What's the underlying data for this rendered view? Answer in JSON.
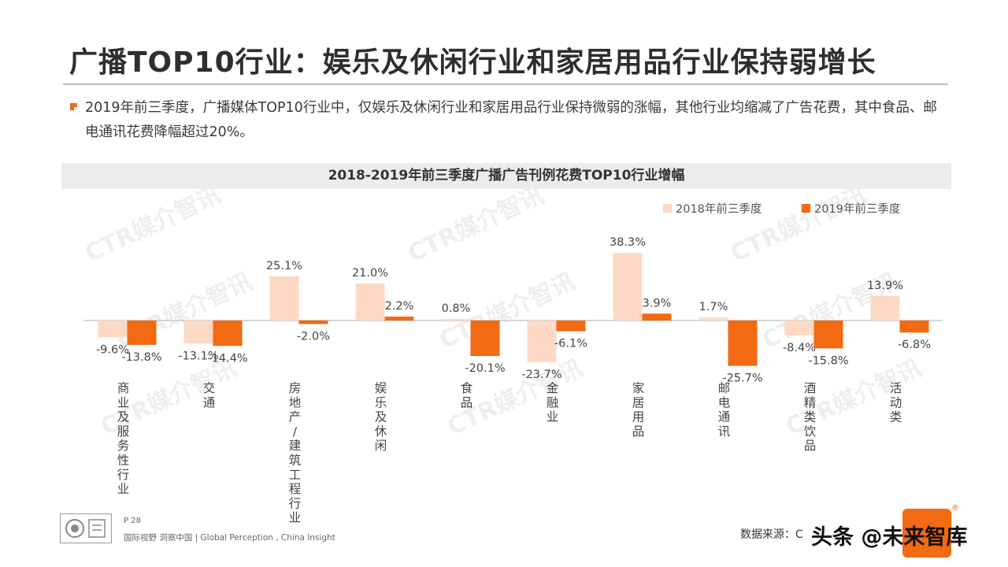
{
  "slide": {
    "title": "广播TOP10行业：娱乐及休闲行业和家居用品行业保持弱增长",
    "bullet_text": "2019年前三季度，广播媒体TOP10行业中，仅娱乐及休闲行业和家居用品行业保持微弱的涨幅，其他行业均缩减了广告花费，其中食品、邮电通讯花费降幅超过20%。"
  },
  "footer": {
    "page": "P 28",
    "slogan": "国际视野  洞察中国 |  Global Perception , China Insight",
    "source": "数据来源：C",
    "watermark_text": "头条 @未来智库"
  },
  "background_watermark": "CTR媒介智讯",
  "colors": {
    "accent": "#f26a11",
    "series_2018": "#fcd9c4",
    "series_2019": "#f26a11"
  },
  "chart_data": {
    "type": "bar",
    "title": "2018-2019年前三季度广播广告刊例花费TOP10行业增幅",
    "legend_position": "top-right",
    "categories": [
      "商业及服务性行业",
      "交通",
      "房地产/建筑工程行业",
      "娱乐及休闲",
      "食品",
      "金融业",
      "家居用品",
      "邮电通讯",
      "酒精类饮品",
      "活动类"
    ],
    "series": [
      {
        "name": "2018年前三季度",
        "values": [
          -9.6,
          -13.1,
          25.1,
          21.0,
          0.8,
          -23.7,
          38.3,
          1.7,
          -8.4,
          13.9
        ],
        "labels": [
          "-9.6%",
          "-13.1%",
          "25.1%",
          "21.0%",
          "0.8%",
          "-23.7%",
          "38.3%",
          "1.7%",
          "-8.4%",
          "13.9%"
        ]
      },
      {
        "name": "2019年前三季度",
        "values": [
          -13.8,
          -14.4,
          -2.0,
          2.2,
          -20.1,
          -6.1,
          3.9,
          -25.7,
          -15.8,
          -6.8
        ],
        "labels": [
          "-13.8%",
          "-14.4%",
          "-2.0%",
          "2.2%",
          "-20.1%",
          "-6.1%",
          "3.9%",
          "-25.7%",
          "-15.8%",
          "-6.8%"
        ]
      }
    ]
  }
}
